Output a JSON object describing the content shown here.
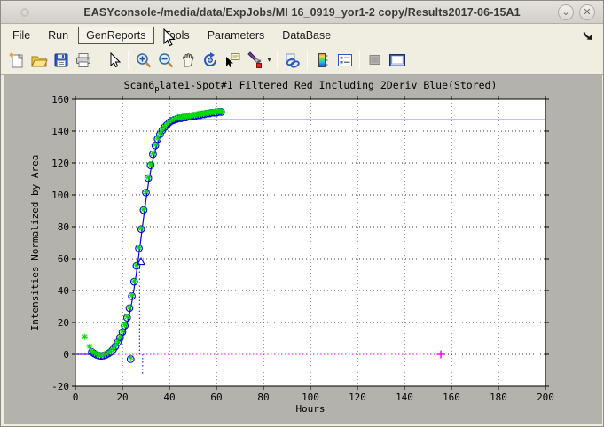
{
  "window": {
    "title": "EASYconsole-/media/data/ExpJobs/MI 16_0919_yor1-2 copy/Results2017-06-15A1",
    "shade_glyph": "⌄",
    "close_glyph": "✕"
  },
  "menubar": {
    "items": [
      {
        "label": "File"
      },
      {
        "label": "Run"
      },
      {
        "label": "GenReports",
        "active": true
      },
      {
        "label": "Tools"
      },
      {
        "label": "Parameters"
      },
      {
        "label": "DataBase"
      }
    ]
  },
  "toolbar": {
    "icons": [
      "new-figure",
      "open-file",
      "save-figure",
      "print-figure",
      "edit-plot",
      "zoom-in",
      "zoom-out",
      "pan",
      "rotate-3d",
      "data-cursor",
      "brush-data",
      "brush-dropdown",
      "link-plot",
      "insert-colorbar",
      "insert-legend",
      "hide-plot-tools",
      "show-plot-tools"
    ]
  },
  "chart_data": {
    "type": "scatter+line",
    "title_prefix": "Scan6",
    "title_sub": "p",
    "title_rest": "late1-Spot#1 Filtered Red Including 2Deriv Blue(Stored)",
    "xlabel": "Hours",
    "ylabel": "Intensities Normalized by Area",
    "xlim": [
      0,
      200
    ],
    "ylim": [
      -20,
      160
    ],
    "xtick_step": 20,
    "ytick_step": 20,
    "grid": "dotted",
    "colors": {
      "fit": "#0000e0",
      "data_green": "#00dd00",
      "baseline": "#ff00ff",
      "grid": "#3a3a3a"
    },
    "series": [
      {
        "name": "fitted-sigmoid",
        "type": "line",
        "style": "solid",
        "color": "#0000e0",
        "points": [
          [
            0,
            0
          ],
          [
            6,
            0
          ],
          [
            8,
            0.1
          ],
          [
            10,
            0.3
          ],
          [
            12,
            0.8
          ],
          [
            14,
            1.8
          ],
          [
            16,
            3.5
          ],
          [
            18,
            6.5
          ],
          [
            19,
            8.5
          ],
          [
            20,
            11
          ],
          [
            21,
            14.5
          ],
          [
            22,
            19
          ],
          [
            23,
            25
          ],
          [
            24,
            32.5
          ],
          [
            25,
            41.5
          ],
          [
            26,
            51.5
          ],
          [
            27,
            62.5
          ],
          [
            28,
            74
          ],
          [
            29,
            85.5
          ],
          [
            30,
            96.5
          ],
          [
            31,
            106.5
          ],
          [
            32,
            115
          ],
          [
            33,
            122
          ],
          [
            34,
            128
          ],
          [
            35,
            132.5
          ],
          [
            36,
            136
          ],
          [
            37,
            139
          ],
          [
            38,
            141
          ],
          [
            39,
            142.5
          ],
          [
            40,
            144
          ],
          [
            41,
            145
          ],
          [
            42,
            145.8
          ],
          [
            43,
            146.3
          ],
          [
            44,
            146.7
          ],
          [
            46,
            147
          ],
          [
            200,
            147
          ]
        ]
      },
      {
        "name": "data-circles",
        "type": "scatter",
        "marker": "circle",
        "color": "#0000e0",
        "points": [
          [
            7,
            1.5
          ],
          [
            8,
            0.5
          ],
          [
            9,
            -0.3
          ],
          [
            10,
            -0.8
          ],
          [
            11,
            -1
          ],
          [
            12,
            -0.8
          ],
          [
            13,
            -0.3
          ],
          [
            14,
            0.5
          ],
          [
            15,
            1.5
          ],
          [
            16,
            3
          ],
          [
            17,
            5
          ],
          [
            18,
            7.5
          ],
          [
            19,
            10.5
          ],
          [
            20,
            14
          ],
          [
            21,
            18
          ],
          [
            22,
            23
          ],
          [
            23,
            29
          ],
          [
            23.5,
            -3
          ],
          [
            24,
            36.5
          ],
          [
            25,
            45.5
          ],
          [
            26,
            55.5
          ],
          [
            27,
            66.5
          ],
          [
            28,
            78.5
          ],
          [
            29,
            90.5
          ],
          [
            30,
            101.5
          ],
          [
            31,
            110.5
          ],
          [
            32,
            118.5
          ],
          [
            33,
            125.5
          ],
          [
            34,
            131
          ],
          [
            35,
            135
          ],
          [
            36,
            138
          ],
          [
            37,
            140.5
          ],
          [
            38,
            142.5
          ],
          [
            39,
            144
          ],
          [
            40,
            145.5
          ],
          [
            41,
            146.5
          ],
          [
            42,
            147
          ],
          [
            43,
            147.5
          ],
          [
            44,
            148
          ],
          [
            45,
            148
          ],
          [
            46,
            148.5
          ],
          [
            47,
            148.5
          ],
          [
            48,
            149
          ],
          [
            49,
            149
          ],
          [
            50,
            149.5
          ],
          [
            51,
            149.5
          ],
          [
            52,
            150
          ],
          [
            53,
            150
          ],
          [
            54,
            150.5
          ],
          [
            55,
            150.5
          ],
          [
            56,
            151
          ],
          [
            57,
            151
          ],
          [
            58,
            151.5
          ],
          [
            59,
            151.5
          ],
          [
            60,
            151.5
          ],
          [
            61,
            152
          ],
          [
            62,
            152
          ]
        ]
      },
      {
        "name": "data-asterisks",
        "type": "scatter",
        "marker": "asterisk",
        "color": "#00dd00",
        "points": [
          [
            4,
            11
          ],
          [
            6,
            5
          ],
          [
            7,
            2
          ],
          [
            8,
            1
          ],
          [
            9,
            0.3
          ],
          [
            10,
            -0.2
          ],
          [
            11,
            -0.4
          ],
          [
            12,
            -0.2
          ],
          [
            13,
            0.3
          ],
          [
            14,
            1
          ],
          [
            15,
            2
          ],
          [
            16,
            3.5
          ],
          [
            17,
            5.5
          ],
          [
            18,
            8
          ],
          [
            19,
            11
          ],
          [
            20,
            14.5
          ],
          [
            21,
            18.5
          ],
          [
            22,
            23.5
          ],
          [
            23,
            29.5
          ],
          [
            23.5,
            -2
          ],
          [
            24,
            37
          ],
          [
            25,
            46
          ],
          [
            26,
            56
          ],
          [
            27,
            67
          ],
          [
            28,
            79
          ],
          [
            29,
            91
          ],
          [
            30,
            102
          ],
          [
            31,
            111
          ],
          [
            32,
            119
          ],
          [
            33,
            126
          ],
          [
            34,
            131.5
          ],
          [
            35,
            135.5
          ],
          [
            36,
            138.5
          ],
          [
            37,
            141
          ],
          [
            38,
            143
          ],
          [
            39,
            144.5
          ],
          [
            40,
            146
          ],
          [
            41,
            147
          ],
          [
            42,
            147.5
          ],
          [
            43,
            148
          ],
          [
            44,
            148.5
          ],
          [
            45,
            148.5
          ],
          [
            45.5,
            149
          ],
          [
            46,
            149
          ],
          [
            46.5,
            149.5
          ],
          [
            47,
            149
          ],
          [
            47.5,
            149.5
          ],
          [
            48,
            149.5
          ],
          [
            48.5,
            150
          ],
          [
            49,
            149.5
          ],
          [
            49.5,
            150
          ],
          [
            50,
            150
          ],
          [
            50.5,
            150.5
          ],
          [
            51,
            150
          ],
          [
            51.5,
            150.5
          ],
          [
            52,
            150.5
          ],
          [
            52.5,
            151
          ],
          [
            53,
            150.5
          ],
          [
            53.5,
            151
          ],
          [
            54,
            151
          ],
          [
            54.5,
            151
          ],
          [
            55,
            151.5
          ],
          [
            55.5,
            151
          ],
          [
            56,
            151.5
          ],
          [
            56.5,
            151.5
          ],
          [
            57,
            152
          ],
          [
            57.5,
            151.5
          ],
          [
            58,
            152
          ],
          [
            58.5,
            152
          ],
          [
            59,
            152
          ],
          [
            59.5,
            152.5
          ],
          [
            60,
            152
          ],
          [
            60.5,
            152.5
          ],
          [
            61,
            152.5
          ],
          [
            61.5,
            152.5
          ],
          [
            62,
            152.5
          ],
          [
            62.5,
            152
          ]
        ]
      },
      {
        "name": "zero-baseline",
        "type": "line",
        "style": "dotted",
        "color": "#ff00ff",
        "end_marker": "plus",
        "points": [
          [
            0,
            0
          ],
          [
            155.5,
            0
          ]
        ]
      },
      {
        "name": "second-deriv-spike-up",
        "type": "line",
        "style": "dotted",
        "color": "#2020dd",
        "points": [
          [
            27.3,
            0
          ],
          [
            27.3,
            55
          ]
        ]
      },
      {
        "name": "second-deriv-spike-down",
        "type": "line",
        "style": "dotted",
        "color": "#2020dd",
        "points": [
          [
            28.6,
            0
          ],
          [
            28.6,
            -13
          ]
        ]
      },
      {
        "name": "inflection-marker",
        "type": "marker",
        "marker": "triangle-up",
        "color": "#0000e0",
        "points": [
          [
            27.9,
            58
          ]
        ]
      }
    ]
  }
}
